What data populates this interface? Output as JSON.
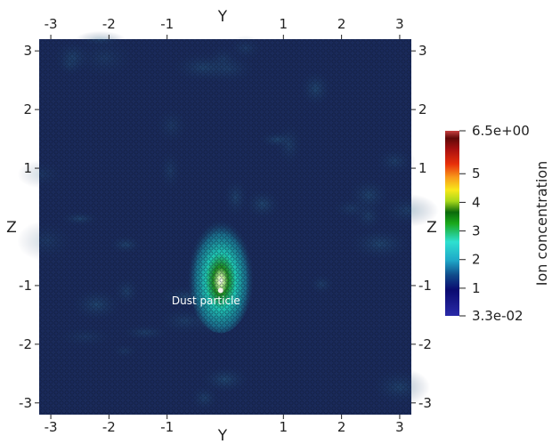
{
  "chart_data": {
    "type": "heatmap",
    "x_axis_label": "Y",
    "y_axis_label": "Z",
    "x_ticks": [
      -3,
      -2,
      -1,
      1,
      2,
      3
    ],
    "y_ticks": [
      3,
      2,
      1,
      -1,
      -2,
      -3
    ],
    "x_tick_labels": [
      "-3",
      "-2",
      "-1",
      "1",
      "2",
      "3"
    ],
    "y_tick_labels": [
      "3",
      "2",
      "1",
      "-1",
      "-2",
      "-3"
    ],
    "xlim": [
      -3.2,
      3.2
    ],
    "ylim": [
      -3.2,
      3.2
    ],
    "grid": false,
    "annotation": {
      "text": "Dust particle",
      "x": -0.92,
      "y": -1.32
    },
    "hotspot": {
      "y": -0.08,
      "z": -0.9,
      "peak": 6.5
    },
    "colorbar": {
      "title": "Ion concentration",
      "min": 0.033,
      "max": 6.5,
      "min_label": "3.3e-02",
      "max_label": "6.5e+00",
      "ticks": [
        1,
        2,
        3,
        4,
        5
      ],
      "tick_labels": [
        "1",
        "2",
        "3",
        "4",
        "5"
      ],
      "colormap": "jet",
      "placement": "right"
    },
    "background_color": "#1a2a5a"
  }
}
